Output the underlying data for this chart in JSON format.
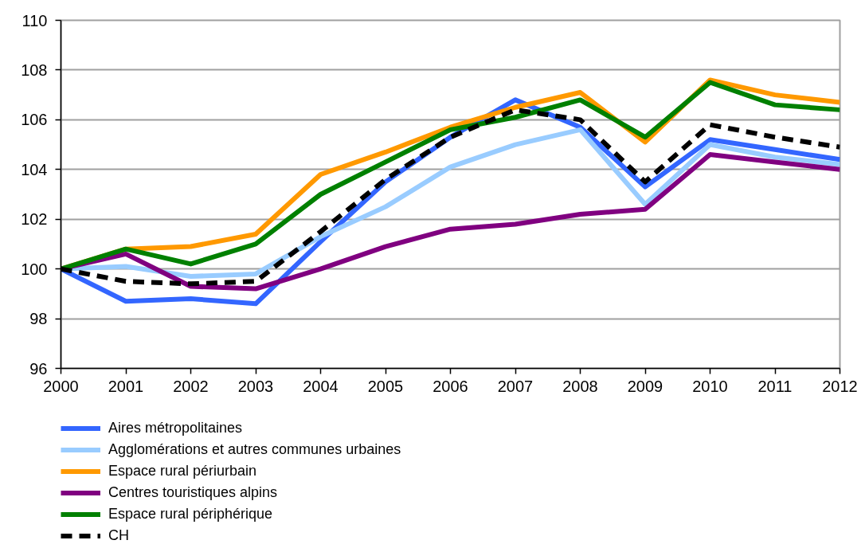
{
  "chart_data": {
    "type": "line",
    "x": [
      2000,
      2001,
      2002,
      2003,
      2004,
      2005,
      2006,
      2007,
      2008,
      2009,
      2010,
      2011,
      2012
    ],
    "xlim": [
      2000,
      2012
    ],
    "xticks": [
      2000,
      2001,
      2002,
      2003,
      2004,
      2005,
      2006,
      2007,
      2008,
      2009,
      2010,
      2011,
      2012
    ],
    "ylim": [
      96,
      110
    ],
    "yticks": [
      96,
      98,
      100,
      102,
      104,
      106,
      108,
      110
    ],
    "grid": "y",
    "legend": "bottom",
    "series": [
      {
        "name": "Aires métropolitaines",
        "color": "#3366ff",
        "values": [
          100,
          98.7,
          98.8,
          98.6,
          101.1,
          103.5,
          105.3,
          106.8,
          105.7,
          103.3,
          105.2,
          104.8,
          104.4
        ]
      },
      {
        "name": "Agglomérations et autres communes urbaines",
        "color": "#99ccff",
        "values": [
          100,
          100.1,
          99.7,
          99.8,
          101.3,
          102.5,
          104.1,
          105.0,
          105.6,
          102.6,
          105.0,
          104.5,
          104.2
        ]
      },
      {
        "name": "Espace rural périurbain",
        "color": "#ff9900",
        "values": [
          100,
          100.8,
          100.9,
          101.4,
          103.8,
          104.7,
          105.7,
          106.5,
          107.1,
          105.1,
          107.6,
          107.0,
          106.7
        ]
      },
      {
        "name": "Centres touristiques alpins",
        "color": "#800080",
        "values": [
          100,
          100.6,
          99.3,
          99.2,
          100.0,
          100.9,
          101.6,
          101.8,
          102.2,
          102.4,
          104.6,
          104.3,
          104.0
        ]
      },
      {
        "name": "Espace rural périphérique",
        "color": "#008000",
        "values": [
          100,
          100.8,
          100.2,
          101.0,
          103.0,
          104.3,
          105.6,
          106.1,
          106.8,
          105.3,
          107.5,
          106.6,
          106.4
        ]
      },
      {
        "name": "CH",
        "color": "#000000",
        "line_style": "dashed",
        "values": [
          100,
          99.5,
          99.4,
          99.5,
          101.5,
          103.6,
          105.3,
          106.4,
          106.0,
          103.5,
          105.8,
          105.3,
          104.9
        ]
      }
    ]
  }
}
